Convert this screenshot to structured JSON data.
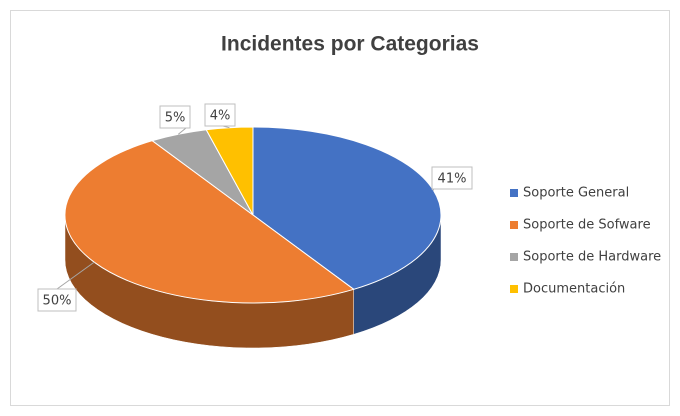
{
  "chart_data": {
    "type": "pie3d",
    "title": "Incidentes por Categorias",
    "categories": [
      "Soporte General",
      "Soporte de Sofware",
      "Soporte de Hardware",
      "Documentación"
    ],
    "values": [
      41,
      50,
      5,
      4
    ],
    "value_labels": [
      "41%",
      "50%",
      "5%",
      "4%"
    ],
    "colors": [
      "#4472c4",
      "#ed7d31",
      "#a5a5a5",
      "#ffc000"
    ],
    "legend": "right"
  }
}
